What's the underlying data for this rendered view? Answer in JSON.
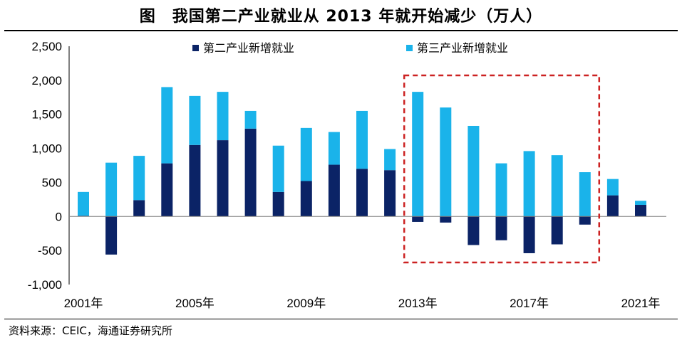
{
  "header": {
    "title": "图　我国第二产业就业从 2013 年就开始减少（万人）"
  },
  "source": "资料来源：CEIC，海通证券研究所",
  "colors": {
    "secondary": "#0b2366",
    "tertiary": "#1ab3ea",
    "highlight": "#cc2222"
  },
  "chart_data": {
    "type": "bar",
    "stacked": true,
    "title": "图　我国第二产业就业从 2013 年就开始减少（万人）",
    "categories": [
      "2001年",
      "2002年",
      "2003年",
      "2004年",
      "2005年",
      "2006年",
      "2007年",
      "2008年",
      "2009年",
      "2010年",
      "2011年",
      "2012年",
      "2013年",
      "2014年",
      "2015年",
      "2016年",
      "2017年",
      "2018年",
      "2019年",
      "2020年",
      "2021年"
    ],
    "x_tick_labels": [
      "2001年",
      "2005年",
      "2009年",
      "2013年",
      "2017年",
      "2021年"
    ],
    "series": [
      {
        "name": "第二产业新增就业",
        "values": [
          10,
          -560,
          240,
          780,
          1050,
          1120,
          1290,
          360,
          520,
          760,
          700,
          680,
          -80,
          -90,
          -420,
          -350,
          -540,
          -410,
          -120,
          310,
          170
        ]
      },
      {
        "name": "第三产业新增就业",
        "values": [
          350,
          790,
          650,
          1120,
          720,
          710,
          260,
          680,
          780,
          480,
          850,
          310,
          1830,
          1600,
          1330,
          780,
          960,
          900,
          650,
          240,
          60
        ]
      }
    ],
    "y_tick_labels": [
      "-1,000",
      "-500",
      "0",
      "500",
      "1,000",
      "1,500",
      "2,000",
      "2,500"
    ],
    "ylim": [
      -1000,
      2500
    ],
    "legend": "top",
    "highlight_range": [
      "2013年",
      "2019年"
    ],
    "grid": false
  }
}
